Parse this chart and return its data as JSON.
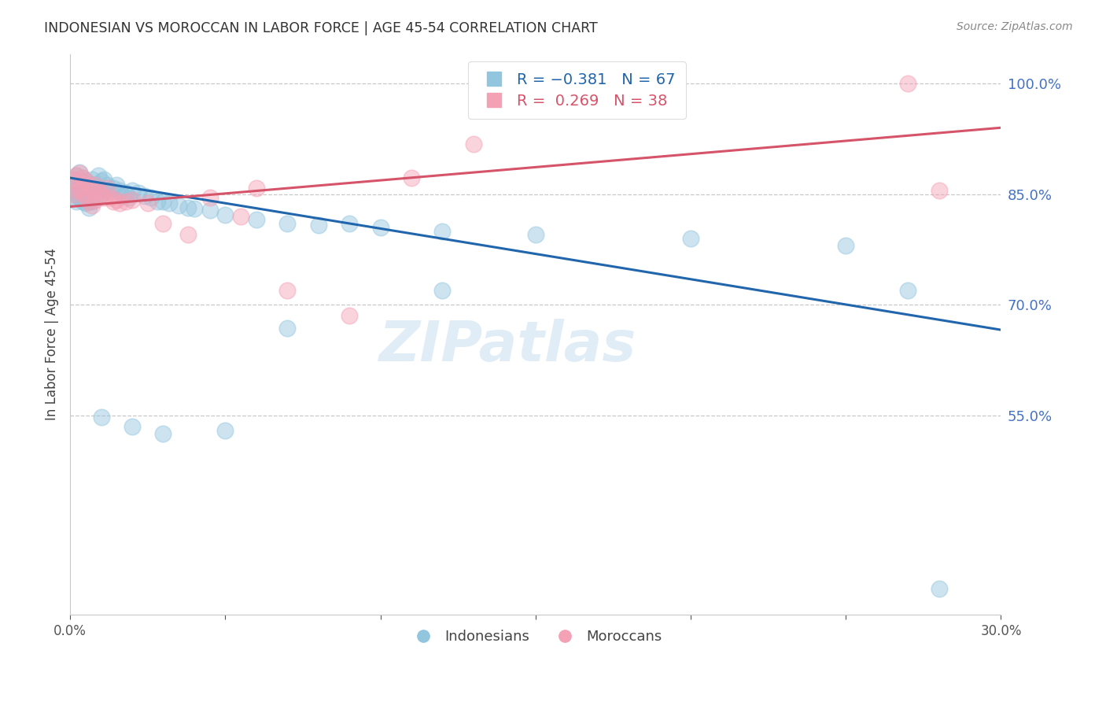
{
  "title": "INDONESIAN VS MOROCCAN IN LABOR FORCE | AGE 45-54 CORRELATION CHART",
  "source": "Source: ZipAtlas.com",
  "ylabel": "In Labor Force | Age 45-54",
  "xlim": [
    0.0,
    0.3
  ],
  "ylim": [
    0.28,
    1.04
  ],
  "yticks_right": [
    0.55,
    0.7,
    0.85,
    1.0
  ],
  "xticks": [
    0.0,
    0.05,
    0.1,
    0.15,
    0.2,
    0.25,
    0.3
  ],
  "indonesian_color": "#92c5de",
  "moroccan_color": "#f4a0b5",
  "indonesian_line_color": "#2166ac",
  "moroccan_line_color": "#d6546a",
  "watermark": "ZIPatlas",
  "indo_line_x0": 0.0,
  "indo_line_y0": 0.872,
  "indo_line_x1": 0.3,
  "indo_line_y1": 0.666,
  "moroccan_line_x0": 0.0,
  "moroccan_line_y0": 0.833,
  "moroccan_line_x1": 0.3,
  "moroccan_line_y1": 0.94,
  "indonesian_x": [
    0.001,
    0.001,
    0.001,
    0.002,
    0.002,
    0.002,
    0.002,
    0.003,
    0.003,
    0.003,
    0.004,
    0.004,
    0.004,
    0.005,
    0.005,
    0.005,
    0.006,
    0.006,
    0.006,
    0.007,
    0.007,
    0.007,
    0.008,
    0.008,
    0.009,
    0.009,
    0.01,
    0.01,
    0.011,
    0.011,
    0.012,
    0.013,
    0.014,
    0.015,
    0.016,
    0.017,
    0.018,
    0.019,
    0.02,
    0.022,
    0.024,
    0.026,
    0.028,
    0.03,
    0.032,
    0.035,
    0.038,
    0.04,
    0.045,
    0.05,
    0.06,
    0.07,
    0.08,
    0.09,
    0.1,
    0.12,
    0.15,
    0.2,
    0.25,
    0.27,
    0.01,
    0.02,
    0.03,
    0.05,
    0.07,
    0.12,
    0.28
  ],
  "indonesian_y": [
    0.87,
    0.855,
    0.845,
    0.875,
    0.86,
    0.85,
    0.84,
    0.88,
    0.862,
    0.845,
    0.872,
    0.855,
    0.84,
    0.868,
    0.852,
    0.838,
    0.865,
    0.848,
    0.832,
    0.87,
    0.855,
    0.84,
    0.862,
    0.848,
    0.875,
    0.855,
    0.868,
    0.85,
    0.87,
    0.855,
    0.862,
    0.855,
    0.858,
    0.862,
    0.855,
    0.848,
    0.852,
    0.845,
    0.855,
    0.852,
    0.848,
    0.845,
    0.84,
    0.84,
    0.838,
    0.835,
    0.832,
    0.83,
    0.828,
    0.822,
    0.815,
    0.81,
    0.808,
    0.81,
    0.805,
    0.8,
    0.795,
    0.79,
    0.78,
    0.72,
    0.548,
    0.535,
    0.525,
    0.53,
    0.668,
    0.72,
    0.315
  ],
  "moroccan_x": [
    0.001,
    0.001,
    0.002,
    0.002,
    0.003,
    0.003,
    0.004,
    0.004,
    0.005,
    0.005,
    0.006,
    0.006,
    0.007,
    0.007,
    0.008,
    0.008,
    0.009,
    0.01,
    0.011,
    0.012,
    0.013,
    0.014,
    0.015,
    0.016,
    0.018,
    0.02,
    0.025,
    0.03,
    0.038,
    0.045,
    0.055,
    0.06,
    0.07,
    0.09,
    0.11,
    0.13,
    0.27,
    0.28
  ],
  "moroccan_y": [
    0.87,
    0.85,
    0.875,
    0.855,
    0.878,
    0.858,
    0.872,
    0.852,
    0.868,
    0.845,
    0.862,
    0.84,
    0.855,
    0.835,
    0.862,
    0.842,
    0.855,
    0.85,
    0.845,
    0.858,
    0.845,
    0.84,
    0.842,
    0.838,
    0.84,
    0.842,
    0.838,
    0.81,
    0.795,
    0.845,
    0.82,
    0.858,
    0.72,
    0.685,
    0.872,
    0.918,
    1.0,
    0.855
  ]
}
